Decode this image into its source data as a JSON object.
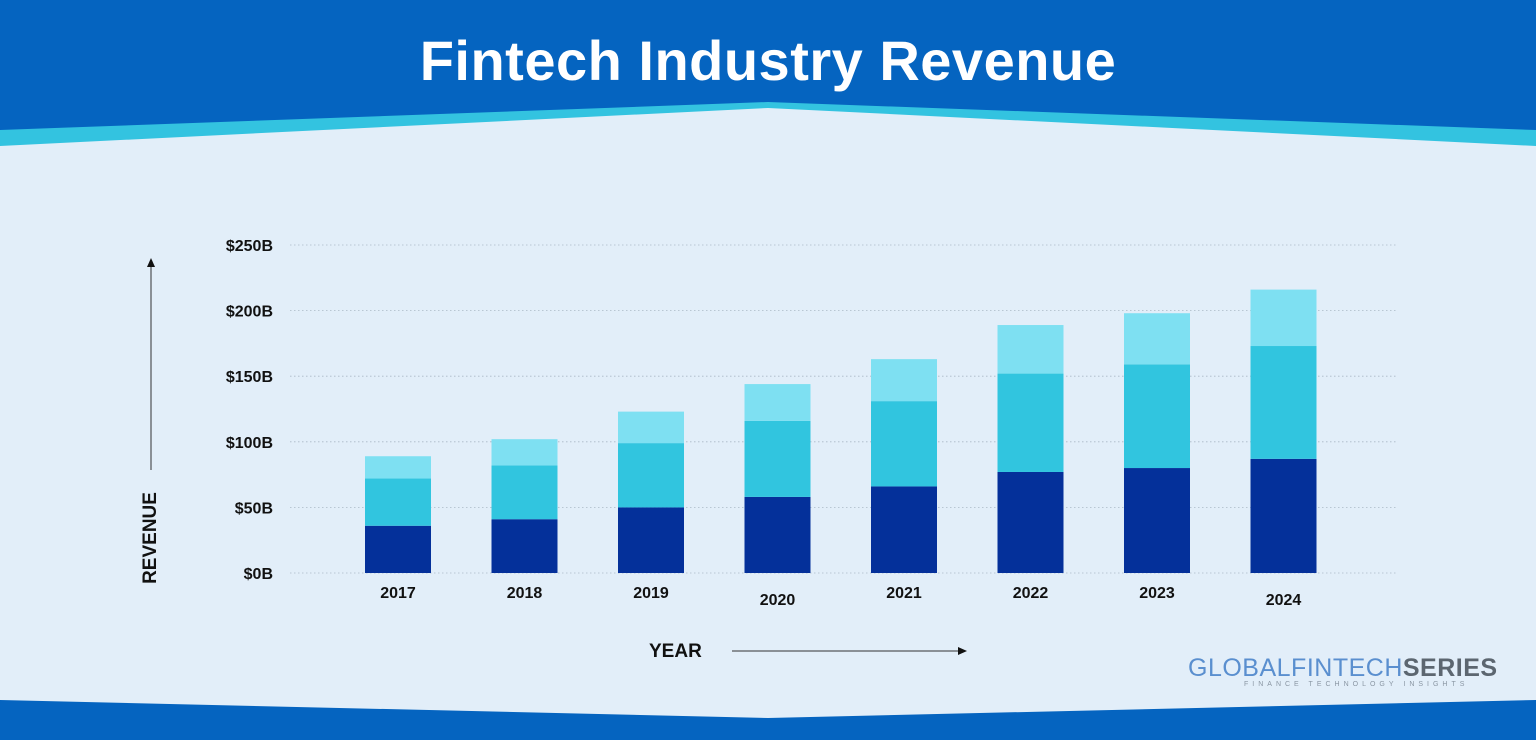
{
  "title": "Fintech Industry Revenue",
  "logo": {
    "part1": "GLOBALFINTECH",
    "part2": "SERIES",
    "tagline": "FINANCE TECHNOLOGY INSIGHTS"
  },
  "colors": {
    "header": "#0564c0",
    "header_accent": "#33c3e0",
    "background": "#e2eef9",
    "bar_bottom": "#04309a",
    "bar_middle": "#31c5df",
    "bar_top": "#7ee0f2"
  },
  "chart_data": {
    "type": "bar",
    "stacked": true,
    "categories": [
      "2017",
      "2018",
      "2019",
      "2020",
      "2021",
      "2022",
      "2023",
      "2024"
    ],
    "series": [
      {
        "values": [
          36,
          41,
          50,
          58,
          66,
          77,
          80,
          87
        ],
        "color": "#04309a"
      },
      {
        "values": [
          36,
          41,
          49,
          58,
          65,
          75,
          79,
          86
        ],
        "color": "#31c5df"
      },
      {
        "values": [
          17,
          20,
          24,
          28,
          32,
          37,
          39,
          43
        ],
        "color": "#7ee0f2"
      }
    ],
    "xlabel": "YEAR",
    "ylabel": "REVENUE",
    "ylim": [
      0,
      250
    ],
    "yticks": [
      0,
      50,
      100,
      150,
      200,
      250
    ],
    "ytick_labels": [
      "$0B",
      "$50B",
      "$100B",
      "$150B",
      "$200B",
      "$250B"
    ],
    "grid": true,
    "legend": "none"
  }
}
